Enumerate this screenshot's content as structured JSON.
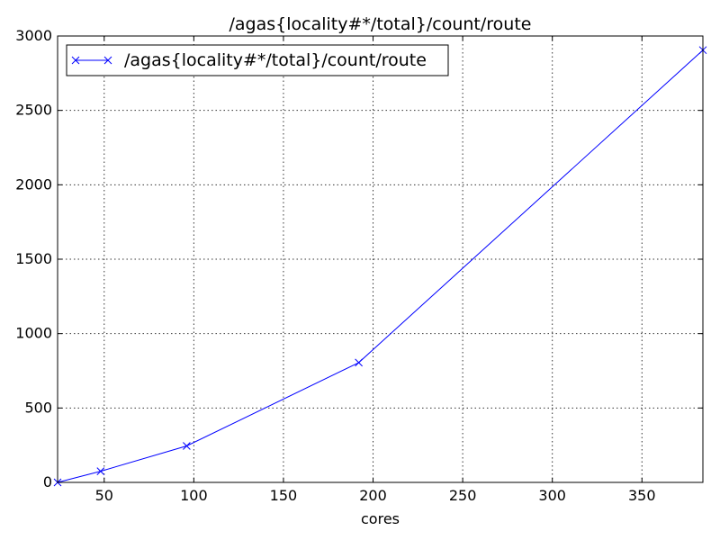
{
  "chart_data": {
    "type": "line",
    "title": "/agas{locality#*/total}/count/route",
    "xlabel": "cores",
    "ylabel": "",
    "xlim": [
      24,
      384
    ],
    "ylim": [
      0,
      3000
    ],
    "xticks": [
      50,
      100,
      150,
      200,
      250,
      300,
      350
    ],
    "yticks": [
      0,
      500,
      1000,
      1500,
      2000,
      2500,
      3000
    ],
    "grid": true,
    "legend_position": "top-left",
    "series": [
      {
        "name": "/agas{locality#*/total}/count/route",
        "color": "#0000ff",
        "marker": "x",
        "x": [
          24,
          48,
          96,
          192,
          384
        ],
        "y": [
          0,
          75,
          245,
          805,
          2905
        ]
      }
    ]
  }
}
